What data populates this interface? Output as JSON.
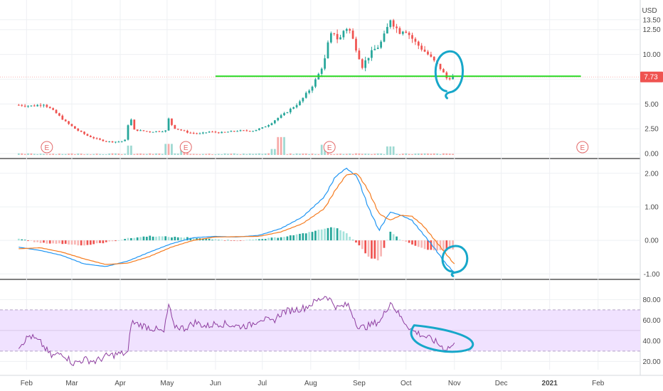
{
  "currency_label": "USD",
  "last_price_label": "7.73",
  "earnings_marker": "E",
  "colors": {
    "up": "#26a69a",
    "down": "#ef5350",
    "hline": "#22dd22",
    "annotation": "#17a7c9",
    "macd": "#2196f3",
    "signal": "#f57c20",
    "rsi": "#8e3ea0",
    "rsi_band": "#f0e2ff",
    "price_tag": "#ef5350",
    "grid": "#eef0f3",
    "divider": "#000000"
  },
  "chart_data": [
    {
      "type": "candlestick",
      "pane": "price",
      "y_ticks": [
        "13.50",
        "12.50",
        "10.00",
        "7.50",
        "5.00",
        "2.50",
        "0.00"
      ],
      "ylim": [
        0,
        14.2
      ],
      "x_tick_labels": [
        "Feb",
        "Mar",
        "Apr",
        "May",
        "Jun",
        "Jul",
        "Aug",
        "Sep",
        "Oct",
        "Nov",
        "Dec",
        "2021",
        "Feb"
      ],
      "price_path": [
        [
          "2020-01-27",
          4.9
        ],
        [
          "2020-02-05",
          4.8
        ],
        [
          "2020-02-12",
          5.0
        ],
        [
          "2020-02-19",
          4.2
        ],
        [
          "2020-02-26",
          3.2
        ],
        [
          "2020-03-04",
          2.4
        ],
        [
          "2020-03-11",
          1.8
        ],
        [
          "2020-03-18",
          1.4
        ],
        [
          "2020-03-25",
          1.2
        ],
        [
          "2020-04-01",
          1.2
        ],
        [
          "2020-04-05",
          1.4
        ],
        [
          "2020-04-07",
          4.4
        ],
        [
          "2020-04-09",
          2.4
        ],
        [
          "2020-04-20",
          2.2
        ],
        [
          "2020-04-30",
          2.3
        ],
        [
          "2020-05-02",
          3.5
        ],
        [
          "2020-05-05",
          2.6
        ],
        [
          "2020-05-15",
          2.1
        ],
        [
          "2020-05-22",
          2.0
        ],
        [
          "2020-05-28",
          2.2
        ],
        [
          "2020-06-04",
          2.1
        ],
        [
          "2020-06-15",
          2.3
        ],
        [
          "2020-06-25",
          2.3
        ],
        [
          "2020-07-01",
          2.6
        ],
        [
          "2020-07-06",
          3.0
        ],
        [
          "2020-07-10",
          3.5
        ],
        [
          "2020-07-15",
          4.0
        ],
        [
          "2020-07-20",
          4.6
        ],
        [
          "2020-07-25",
          5.2
        ],
        [
          "2020-07-28",
          5.8
        ],
        [
          "2020-08-01",
          6.6
        ],
        [
          "2020-08-04",
          7.4
        ],
        [
          "2020-08-07",
          8.3
        ],
        [
          "2020-08-10",
          9.5
        ],
        [
          "2020-08-13",
          11.8
        ],
        [
          "2020-08-16",
          12.2
        ],
        [
          "2020-08-19",
          11.3
        ],
        [
          "2020-08-22",
          12.4
        ],
        [
          "2020-08-25",
          12.8
        ],
        [
          "2020-08-28",
          11.5
        ],
        [
          "2020-08-31",
          10.2
        ],
        [
          "2020-09-03",
          8.8
        ],
        [
          "2020-09-06",
          9.6
        ],
        [
          "2020-09-10",
          10.4
        ],
        [
          "2020-09-14",
          10.9
        ],
        [
          "2020-09-18",
          12.2
        ],
        [
          "2020-09-21",
          13.6
        ],
        [
          "2020-09-24",
          12.8
        ],
        [
          "2020-09-27",
          12.3
        ],
        [
          "2020-09-30",
          12.6
        ],
        [
          "2020-10-03",
          12.0
        ],
        [
          "2020-10-07",
          11.2
        ],
        [
          "2020-10-11",
          10.6
        ],
        [
          "2020-10-15",
          10.0
        ],
        [
          "2020-10-19",
          9.3
        ],
        [
          "2020-10-23",
          8.6
        ],
        [
          "2020-10-27",
          7.6
        ],
        [
          "2020-10-31",
          7.73
        ]
      ],
      "volume_path": [
        [
          "2020-04-07",
          2.2
        ],
        [
          "2020-05-02",
          2.6
        ],
        [
          "2020-05-12",
          1.8
        ],
        [
          "2020-07-08",
          1.4
        ],
        [
          "2020-07-13",
          4.2
        ],
        [
          "2020-08-10",
          2.4
        ],
        [
          "2020-09-21",
          2.0
        ]
      ],
      "earnings_dates": [
        "2020-02-14",
        "2020-05-13",
        "2020-08-13",
        "2021-01-22"
      ],
      "support_line": {
        "value": 7.8,
        "from": "2020-06-01",
        "to": "2021-01-21"
      },
      "last_price": 7.73
    },
    {
      "type": "line",
      "pane": "macd",
      "y_ticks": [
        "2.00",
        "1.00",
        "0.00",
        "-1.00"
      ],
      "ylim": [
        -1.1,
        2.25
      ],
      "series": [
        {
          "role": "macd",
          "values": [
            [
              "2020-01-27",
              -0.2
            ],
            [
              "2020-02-10",
              -0.3
            ],
            [
              "2020-02-24",
              -0.45
            ],
            [
              "2020-03-09",
              -0.7
            ],
            [
              "2020-03-23",
              -0.78
            ],
            [
              "2020-04-06",
              -0.62
            ],
            [
              "2020-04-20",
              -0.35
            ],
            [
              "2020-05-04",
              -0.1
            ],
            [
              "2020-05-18",
              0.08
            ],
            [
              "2020-06-01",
              0.12
            ],
            [
              "2020-06-15",
              0.1
            ],
            [
              "2020-06-29",
              0.15
            ],
            [
              "2020-07-13",
              0.35
            ],
            [
              "2020-07-27",
              0.7
            ],
            [
              "2020-08-10",
              1.3
            ],
            [
              "2020-08-17",
              1.9
            ],
            [
              "2020-08-24",
              2.15
            ],
            [
              "2020-08-31",
              1.9
            ],
            [
              "2020-09-07",
              1.0
            ],
            [
              "2020-09-14",
              0.3
            ],
            [
              "2020-09-21",
              0.85
            ],
            [
              "2020-09-28",
              0.75
            ],
            [
              "2020-10-05",
              0.6
            ],
            [
              "2020-10-12",
              0.2
            ],
            [
              "2020-10-19",
              -0.2
            ],
            [
              "2020-10-26",
              -0.65
            ],
            [
              "2020-11-01",
              -0.95
            ]
          ]
        },
        {
          "role": "signal",
          "values": [
            [
              "2020-01-27",
              -0.25
            ],
            [
              "2020-02-10",
              -0.22
            ],
            [
              "2020-02-24",
              -0.35
            ],
            [
              "2020-03-09",
              -0.55
            ],
            [
              "2020-03-23",
              -0.72
            ],
            [
              "2020-04-06",
              -0.68
            ],
            [
              "2020-04-20",
              -0.48
            ],
            [
              "2020-05-04",
              -0.2
            ],
            [
              "2020-05-18",
              0.0
            ],
            [
              "2020-06-01",
              0.1
            ],
            [
              "2020-06-15",
              0.11
            ],
            [
              "2020-06-29",
              0.12
            ],
            [
              "2020-07-13",
              0.25
            ],
            [
              "2020-07-27",
              0.5
            ],
            [
              "2020-08-10",
              0.95
            ],
            [
              "2020-08-17",
              1.5
            ],
            [
              "2020-08-24",
              1.95
            ],
            [
              "2020-08-31",
              2.0
            ],
            [
              "2020-09-07",
              1.5
            ],
            [
              "2020-09-14",
              0.8
            ],
            [
              "2020-09-21",
              0.6
            ],
            [
              "2020-09-28",
              0.75
            ],
            [
              "2020-10-05",
              0.72
            ],
            [
              "2020-10-12",
              0.45
            ],
            [
              "2020-10-19",
              0.05
            ],
            [
              "2020-10-26",
              -0.35
            ],
            [
              "2020-11-01",
              -0.7
            ]
          ]
        }
      ],
      "histogram": [
        [
          "2020-01-27",
          0.05
        ],
        [
          "2020-02-10",
          -0.08
        ],
        [
          "2020-02-24",
          -0.1
        ],
        [
          "2020-03-09",
          -0.15
        ],
        [
          "2020-03-23",
          -0.06
        ],
        [
          "2020-04-06",
          0.06
        ],
        [
          "2020-04-20",
          0.13
        ],
        [
          "2020-05-04",
          0.1
        ],
        [
          "2020-05-18",
          0.08
        ],
        [
          "2020-06-01",
          0.02
        ],
        [
          "2020-06-15",
          -0.01
        ],
        [
          "2020-06-29",
          0.03
        ],
        [
          "2020-07-13",
          0.1
        ],
        [
          "2020-07-27",
          0.2
        ],
        [
          "2020-08-10",
          0.35
        ],
        [
          "2020-08-17",
          0.4
        ],
        [
          "2020-08-24",
          0.2
        ],
        [
          "2020-08-31",
          -0.1
        ],
        [
          "2020-09-07",
          -0.5
        ],
        [
          "2020-09-14",
          -0.6
        ],
        [
          "2020-09-21",
          0.25
        ],
        [
          "2020-09-28",
          0.0
        ],
        [
          "2020-10-05",
          -0.12
        ],
        [
          "2020-10-12",
          -0.25
        ],
        [
          "2020-10-19",
          -0.3
        ],
        [
          "2020-10-26",
          -0.3
        ],
        [
          "2020-11-01",
          -0.25
        ]
      ]
    },
    {
      "type": "line",
      "pane": "rsi",
      "y_ticks": [
        "80.00",
        "60.00",
        "40.00",
        "20.00"
      ],
      "ylim": [
        12,
        92
      ],
      "band": [
        30,
        70
      ],
      "midline": 50,
      "series": [
        {
          "role": "rsi",
          "values": [
            [
              "2020-01-27",
              35
            ],
            [
              "2020-02-03",
              45
            ],
            [
              "2020-02-10",
              38
            ],
            [
              "2020-02-17",
              25
            ],
            [
              "2020-02-24",
              28
            ],
            [
              "2020-03-02",
              18
            ],
            [
              "2020-03-09",
              22
            ],
            [
              "2020-03-16",
              20
            ],
            [
              "2020-03-23",
              25
            ],
            [
              "2020-03-30",
              27
            ],
            [
              "2020-04-06",
              28
            ],
            [
              "2020-04-08",
              58
            ],
            [
              "2020-04-15",
              55
            ],
            [
              "2020-04-22",
              52
            ],
            [
              "2020-04-29",
              48
            ],
            [
              "2020-05-02",
              75
            ],
            [
              "2020-05-05",
              55
            ],
            [
              "2020-05-12",
              52
            ],
            [
              "2020-05-19",
              58
            ],
            [
              "2020-05-26",
              54
            ],
            [
              "2020-06-02",
              57
            ],
            [
              "2020-06-09",
              56
            ],
            [
              "2020-06-16",
              54
            ],
            [
              "2020-06-23",
              55
            ],
            [
              "2020-06-30",
              62
            ],
            [
              "2020-07-07",
              58
            ],
            [
              "2020-07-14",
              68
            ],
            [
              "2020-07-21",
              70
            ],
            [
              "2020-07-28",
              72
            ],
            [
              "2020-08-04",
              78
            ],
            [
              "2020-08-11",
              84
            ],
            [
              "2020-08-18",
              72
            ],
            [
              "2020-08-25",
              75
            ],
            [
              "2020-09-01",
              52
            ],
            [
              "2020-09-08",
              55
            ],
            [
              "2020-09-15",
              60
            ],
            [
              "2020-09-21",
              78
            ],
            [
              "2020-09-28",
              62
            ],
            [
              "2020-10-05",
              50
            ],
            [
              "2020-10-12",
              45
            ],
            [
              "2020-10-19",
              40
            ],
            [
              "2020-10-26",
              32
            ],
            [
              "2020-11-01",
              36
            ]
          ]
        }
      ]
    }
  ]
}
